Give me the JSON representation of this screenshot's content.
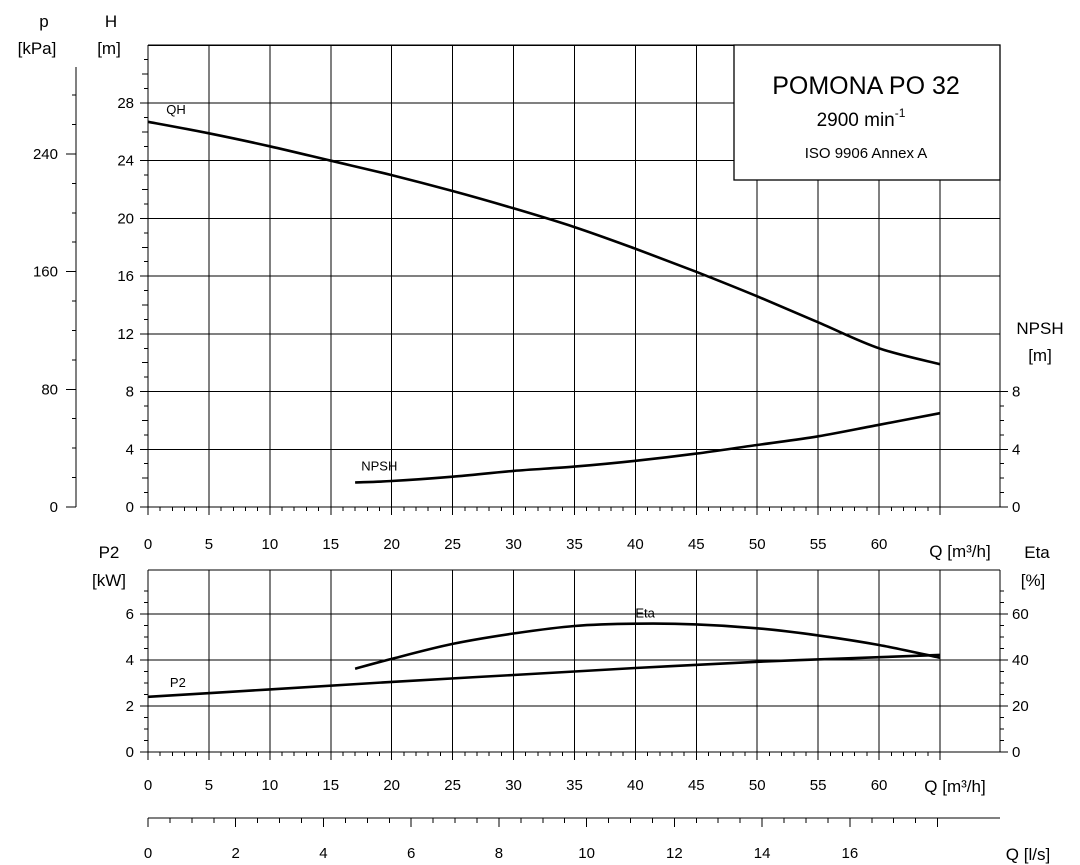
{
  "title_block": {
    "model": "POMONA PO 32",
    "speed": "2900 min",
    "speed_sup": "-1",
    "standard": "ISO 9906 Annex A"
  },
  "chart_data": [
    {
      "type": "line",
      "panel": "top",
      "axes": {
        "x": {
          "label": "Q [m³/h]",
          "ticks": [
            0,
            5,
            10,
            15,
            20,
            25,
            30,
            35,
            40,
            45,
            50,
            55,
            60
          ],
          "range": [
            0,
            65
          ]
        },
        "y_left_outer": {
          "label_line1": "p",
          "label_line2": "[kPa]",
          "ticks": [
            0,
            80,
            160,
            240
          ],
          "range": [
            0,
            280
          ]
        },
        "y_left": {
          "label_line1": "H",
          "label_line2": "[m]",
          "ticks": [
            0,
            4,
            8,
            12,
            16,
            20,
            24,
            28
          ],
          "range": [
            0,
            32
          ]
        },
        "y_right": {
          "label_line1": "NPSH",
          "label_line2": "[m]",
          "ticks": [
            0,
            4,
            8
          ],
          "range": [
            0,
            32
          ]
        }
      },
      "grid": true,
      "series": [
        {
          "name": "QH",
          "axis": "y_left",
          "x": [
            0,
            5,
            10,
            15,
            20,
            25,
            30,
            35,
            40,
            45,
            50,
            55,
            60,
            65
          ],
          "y": [
            26.7,
            25.9,
            25.0,
            24.0,
            23.0,
            21.9,
            20.7,
            19.4,
            17.9,
            16.3,
            14.6,
            12.8,
            11.0,
            9.9
          ]
        },
        {
          "name": "NPSH",
          "axis": "y_right",
          "x": [
            17,
            20,
            25,
            30,
            35,
            40,
            45,
            50,
            55,
            60,
            65
          ],
          "y": [
            1.7,
            1.8,
            2.1,
            2.5,
            2.8,
            3.2,
            3.7,
            4.3,
            4.9,
            5.7,
            6.5
          ]
        }
      ]
    },
    {
      "type": "line",
      "panel": "bottom",
      "axes": {
        "x": {
          "label": "Q [m³/h]",
          "ticks": [
            0,
            5,
            10,
            15,
            20,
            25,
            30,
            35,
            40,
            45,
            50,
            55,
            60
          ],
          "range": [
            0,
            65
          ]
        },
        "x2": {
          "label": "Q [l/s]",
          "ticks": [
            0,
            2,
            4,
            6,
            8,
            10,
            12,
            14,
            16
          ],
          "range": [
            0,
            18.06
          ]
        },
        "y_left": {
          "label_line1": "P2",
          "label_line2": "[kW]",
          "ticks": [
            0,
            2,
            4,
            6
          ],
          "range": [
            0,
            8
          ]
        },
        "y_right": {
          "label_line1": "Eta",
          "label_line2": "[%]",
          "ticks": [
            0,
            20,
            40,
            60
          ],
          "range": [
            0,
            80
          ]
        }
      },
      "grid": true,
      "series": [
        {
          "name": "P2",
          "axis": "y_left",
          "x": [
            0,
            10,
            20,
            30,
            40,
            50,
            60,
            65
          ],
          "y": [
            2.4,
            2.72,
            3.05,
            3.35,
            3.65,
            3.92,
            4.12,
            4.22
          ]
        },
        {
          "name": "Eta",
          "axis": "y_right",
          "x": [
            17,
            20,
            25,
            30,
            35,
            40,
            45,
            50,
            55,
            60,
            65
          ],
          "y": [
            36.2,
            40.5,
            47.0,
            51.5,
            54.8,
            55.8,
            55.5,
            53.8,
            50.7,
            46.5,
            41.0
          ]
        }
      ]
    }
  ]
}
